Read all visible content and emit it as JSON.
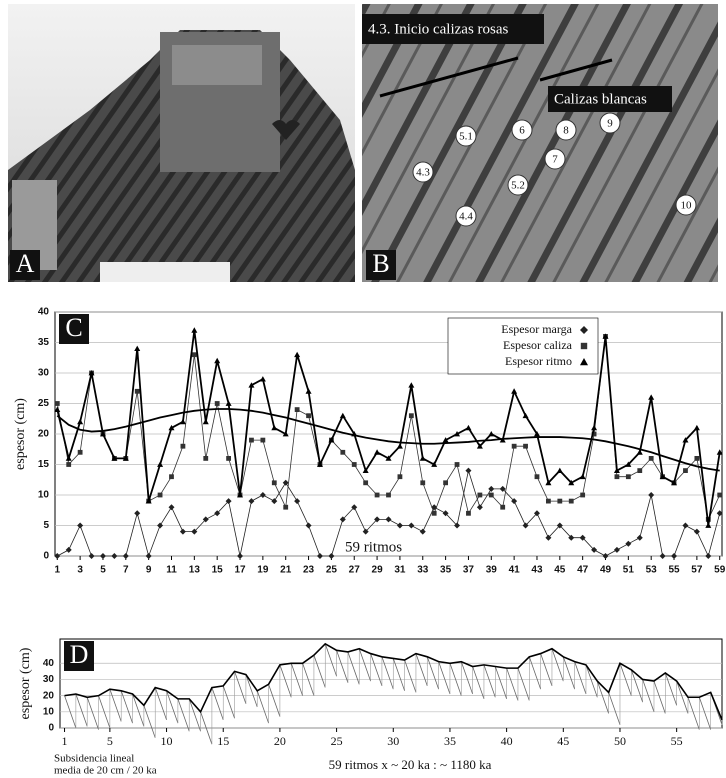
{
  "photos": [
    {
      "panel": "A"
    },
    {
      "panel": "B",
      "title": "4.3. Inicio calizas rosas",
      "caption": "Calizas blancas",
      "labels": [
        "5.1",
        "6",
        "8",
        "9",
        "4.3",
        "7",
        "5.2",
        "4.4",
        "10"
      ]
    }
  ],
  "chart_data": [
    {
      "type": "line",
      "panel": "C",
      "y_label": "espesor (cm)",
      "annotation": "59 ritmos",
      "x": [
        1,
        2,
        3,
        4,
        5,
        6,
        7,
        8,
        9,
        10,
        11,
        12,
        13,
        14,
        15,
        16,
        17,
        18,
        19,
        20,
        21,
        22,
        23,
        24,
        25,
        26,
        27,
        28,
        29,
        30,
        31,
        32,
        33,
        34,
        35,
        36,
        37,
        38,
        39,
        40,
        41,
        42,
        43,
        44,
        45,
        46,
        47,
        48,
        49,
        50,
        51,
        52,
        53,
        54,
        55,
        56,
        57,
        58,
        59
      ],
      "xlim": [
        0.8,
        59.2
      ],
      "xticks": [
        1,
        3,
        5,
        7,
        9,
        11,
        13,
        15,
        17,
        19,
        21,
        23,
        25,
        27,
        29,
        31,
        33,
        35,
        37,
        39,
        41,
        43,
        45,
        47,
        49,
        51,
        53,
        55,
        57,
        59
      ],
      "ylim": [
        0,
        40
      ],
      "yticks": [
        0,
        5,
        10,
        15,
        20,
        25,
        30,
        35,
        40
      ],
      "grid": true,
      "legend": "top-right",
      "series": [
        {
          "name": "Espesor marga",
          "marker": "diamond",
          "color": "#222",
          "values": [
            0,
            1,
            5,
            0,
            0,
            0,
            0,
            7,
            0,
            5,
            8,
            4,
            4,
            6,
            7,
            9,
            0,
            9,
            10,
            9,
            12,
            9,
            5,
            0,
            0,
            6,
            8,
            4,
            6,
            6,
            5,
            5,
            4,
            8,
            7,
            5,
            14,
            8,
            11,
            11,
            9,
            5,
            7,
            3,
            5,
            3,
            3,
            1,
            0,
            1,
            2,
            3,
            10,
            0,
            0,
            5,
            4,
            0,
            7
          ]
        },
        {
          "name": "Espesor caliza",
          "marker": "square",
          "color": "#333",
          "values": [
            25,
            15,
            17,
            30,
            20,
            16,
            16,
            27,
            9,
            10,
            13,
            18,
            33,
            16,
            25,
            16,
            10,
            19,
            19,
            12,
            8,
            24,
            23,
            15,
            19,
            17,
            15,
            12,
            10,
            10,
            13,
            23,
            12,
            7,
            12,
            15,
            7,
            10,
            10,
            8,
            18,
            18,
            13,
            9,
            9,
            9,
            10,
            20,
            36,
            13,
            13,
            14,
            16,
            13,
            12,
            14,
            16,
            6,
            10
          ]
        },
        {
          "name": "Espesor ritmo",
          "marker": "triangle",
          "color": "#000",
          "values": [
            24,
            16,
            22,
            30,
            20,
            16,
            16,
            34,
            9,
            15,
            21,
            22,
            37,
            22,
            32,
            25,
            10,
            28,
            29,
            21,
            20,
            33,
            27,
            15,
            19,
            23,
            20,
            14,
            17,
            16,
            18,
            28,
            16,
            15,
            19,
            20,
            21,
            18,
            20,
            19,
            27,
            23,
            20,
            12,
            14,
            12,
            13,
            21,
            36,
            14,
            15,
            17,
            26,
            13,
            12,
            19,
            21,
            5,
            17
          ]
        },
        {
          "marker": "none",
          "color": "#000",
          "values": [
            23,
            21.5,
            20.7,
            20.4,
            20.5,
            20.8,
            21.2,
            21.7,
            22.2,
            22.7,
            23.1,
            23.5,
            23.8,
            24,
            24.1,
            24.1,
            24,
            23.8,
            23.5,
            23.1,
            22.7,
            22.2,
            21.7,
            21.2,
            20.7,
            20.2,
            19.8,
            19.4,
            19.1,
            18.8,
            18.6,
            18.5,
            18.4,
            18.4,
            18.5,
            18.6,
            18.7,
            18.9,
            19,
            19.2,
            19.3,
            19.4,
            19.5,
            19.5,
            19.5,
            19.4,
            19.3,
            19.1,
            18.8,
            18.4,
            18,
            17.5,
            17,
            16.4,
            15.8,
            15.2,
            14.7,
            14.3,
            14
          ]
        }
      ]
    },
    {
      "type": "line",
      "panel": "D",
      "y_label": "espesor (cm)",
      "annotation": "59 ritmos x ~ 20 ka : ~ 1180 ka",
      "note_lines": [
        "Subsidencia lineal",
        "media de 20 cm / 20 ka"
      ],
      "subsidence": 20,
      "x": [
        1,
        2,
        3,
        4,
        5,
        6,
        7,
        8,
        9,
        10,
        11,
        12,
        13,
        14,
        15,
        16,
        17,
        18,
        19,
        20,
        21,
        22,
        23,
        24,
        25,
        26,
        27,
        28,
        29,
        30,
        31,
        32,
        33,
        34,
        35,
        36,
        37,
        38,
        39,
        40,
        41,
        42,
        43,
        44,
        45,
        46,
        47,
        48,
        49,
        50,
        51,
        52,
        53,
        54,
        55,
        56,
        57,
        58,
        59
      ],
      "xlim": [
        0.6,
        59
      ],
      "xticks": [
        1,
        5,
        10,
        15,
        20,
        25,
        30,
        35,
        40,
        45,
        50,
        55
      ],
      "ylim": [
        0,
        55
      ],
      "yticks": [
        0,
        10,
        20,
        30,
        40
      ],
      "grid": true,
      "series": [
        {
          "color": "#000",
          "values": [
            20,
            21,
            19,
            20,
            24,
            23,
            21,
            14,
            25,
            23,
            18,
            18,
            10,
            25,
            26,
            35,
            33,
            23,
            27,
            39,
            40,
            40,
            45,
            52,
            48,
            47,
            49,
            46,
            44,
            43,
            42,
            46,
            44,
            41,
            40,
            41,
            38,
            39,
            38,
            37,
            37,
            44,
            46,
            49,
            44,
            41,
            39,
            29,
            22,
            40,
            36,
            30,
            29,
            34,
            29,
            19,
            19,
            22,
            5
          ]
        }
      ]
    }
  ]
}
